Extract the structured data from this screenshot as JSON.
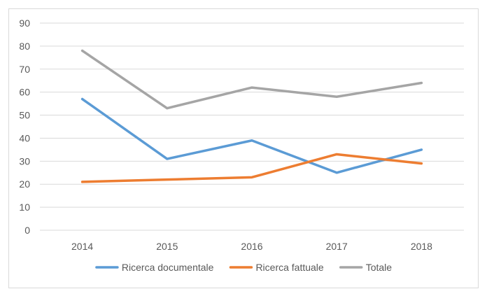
{
  "chart_data": {
    "type": "line",
    "title": "",
    "xlabel": "",
    "ylabel": "",
    "categories": [
      "2014",
      "2015",
      "2016",
      "2017",
      "2018"
    ],
    "ylim": [
      0,
      90
    ],
    "yticks": [
      0,
      10,
      20,
      30,
      40,
      50,
      60,
      70,
      80,
      90
    ],
    "grid": true,
    "legend_position": "bottom",
    "series": [
      {
        "name": "Ricerca documentale",
        "color": "#5b9bd5",
        "values": [
          57,
          31,
          39,
          25,
          35
        ]
      },
      {
        "name": "Ricerca fattuale",
        "color": "#ed7d31",
        "values": [
          21,
          22,
          23,
          33,
          29
        ]
      },
      {
        "name": "Totale",
        "color": "#a5a5a5",
        "values": [
          78,
          53,
          62,
          58,
          64
        ]
      }
    ]
  }
}
